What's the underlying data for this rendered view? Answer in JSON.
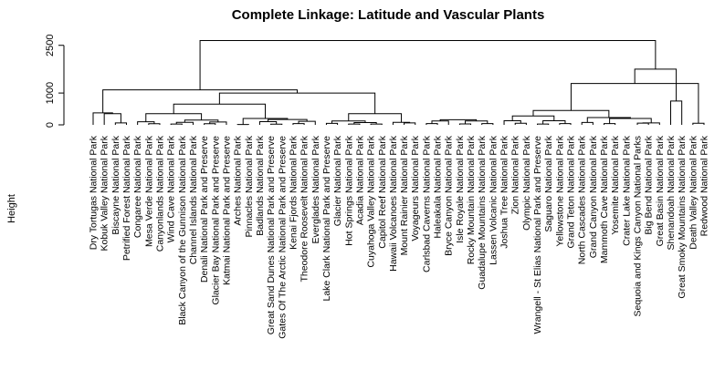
{
  "chart_data": {
    "type": "dendrogram",
    "title": "Complete Linkage: Latitude and Vascular Plants",
    "ylabel": "Height",
    "ylim": [
      0,
      2750
    ],
    "y_ticks": [
      0,
      1000,
      2500
    ],
    "y_tick_labels": [
      "0",
      "1000",
      "2500"
    ],
    "leaves": [
      "Dry Tortugas National Park",
      "Kobuk Valley National Park",
      "Biscayne National Park",
      "Petrified Forest National Park",
      "Congaree National Park",
      "Mesa Verde National Park",
      "Canyonlands National Park",
      "Wind Cave National Park",
      "Black Canyon of the Gunnison National Park",
      "Channel Islands National Park",
      "Denali National Park and Preserve",
      "Glacier Bay National Park and Preserve",
      "Katmai National Park and Preserve",
      "Arches National Park",
      "Pinnacles National Park",
      "Badlands National Park",
      "Great Sand Dunes National Park and Preserve",
      "Gates Of The Arctic National Park and Preserve",
      "Kenai Fjords National Park",
      "Theodore Roosevelt National Park",
      "Everglades National Park",
      "Lake Clark National Park and Preserve",
      "Glacier National Park",
      "Hot Springs National Park",
      "Acadia National Park",
      "Cuyahoga Valley National Park",
      "Capitol Reef National Park",
      "Hawaii Volcanoes National Park",
      "Mount Rainier National Park",
      "Voyageurs National Park",
      "Carlsbad Caverns National Park",
      "Haleakala National Park",
      "Bryce Canyon National Park",
      "Isle Royale National Park",
      "Rocky Mountain National Park",
      "Guadalupe Mountains National Park",
      "Lassen Volcanic National Park",
      "Joshua Tree National Park",
      "Zion National Park",
      "Olympic National Park",
      "Wrangell - St Elias National Park and Preserve",
      "Saguaro National Park",
      "Yellowstone National Park",
      "Grand Teton National Park",
      "North Cascades National Park",
      "Grand Canyon National Park",
      "Mammoth Cave National Park",
      "Yosemite National Park",
      "Crater Lake National Park",
      "Sequoia and Kings Canyon National Parks",
      "Big Bend National Park",
      "Great Basin National Park",
      "Shenandoah National Park",
      "Great Smoky Mountains National Park",
      "Death Valley National Park",
      "Redwood National Park"
    ],
    "merges": [
      {
        "left": [
          "leaf",
          13
        ],
        "right": [
          "leaf",
          14
        ],
        "height": 10
      },
      {
        "left": [
          "leaf",
          16
        ],
        "right": [
          "leaf",
          17
        ],
        "height": 20
      },
      {
        "left": [
          "leaf",
          7
        ],
        "right": [
          "leaf",
          8
        ],
        "height": 25
      },
      {
        "left": [
          "leaf",
          23
        ],
        "right": [
          "leaf",
          24
        ],
        "height": 25
      },
      {
        "left": [
          "leaf",
          25
        ],
        "right": [
          "leaf",
          26
        ],
        "height": 25
      },
      {
        "left": [
          "leaf",
          40
        ],
        "right": [
          "leaf",
          41
        ],
        "height": 25
      },
      {
        "left": [
          "leaf",
          33
        ],
        "right": [
          "leaf",
          34
        ],
        "height": 30
      },
      {
        "left": [
          "leaf",
          10
        ],
        "right": [
          "leaf",
          11
        ],
        "height": 35
      },
      {
        "left": [
          "leaf",
          5
        ],
        "right": [
          "leaf",
          6
        ],
        "height": 35
      },
      {
        "left": [
          "leaf",
          18
        ],
        "right": [
          "leaf",
          19
        ],
        "height": 40
      },
      {
        "left": [
          "leaf",
          30
        ],
        "right": [
          "leaf",
          31
        ],
        "height": 40
      },
      {
        "left": [
          "leaf",
          35
        ],
        "right": [
          "leaf",
          36
        ],
        "height": 40
      },
      {
        "left": [
          "leaf",
          42
        ],
        "right": [
          "leaf",
          43
        ],
        "height": 40
      },
      {
        "left": [
          "leaf",
          46
        ],
        "right": [
          "leaf",
          47
        ],
        "height": 40
      },
      {
        "left": [
          "leaf",
          21
        ],
        "right": [
          "leaf",
          22
        ],
        "height": 45
      },
      {
        "left": [
          "leaf",
          38
        ],
        "right": [
          "leaf",
          39
        ],
        "height": 50
      },
      {
        "left": [
          "leaf",
          54
        ],
        "right": [
          "leaf",
          55
        ],
        "height": 50
      },
      {
        "left": [
          "leaf",
          49
        ],
        "right": [
          "leaf",
          50
        ],
        "height": 55
      },
      {
        "left": [
          "leaf",
          2
        ],
        "right": [
          "leaf",
          3
        ],
        "height": 60
      },
      {
        "left": [
          "leaf",
          51
        ],
        "right": [
          "node",
          17
        ],
        "height": 60
      },
      {
        "left": [
          "leaf",
          28
        ],
        "right": [
          "leaf",
          29
        ],
        "height": 60
      },
      {
        "left": [
          "node",
          3
        ],
        "right": [
          "node",
          4
        ],
        "height": 70
      },
      {
        "left": [
          "leaf",
          44
        ],
        "right": [
          "leaf",
          45
        ],
        "height": 75
      },
      {
        "left": [
          "node",
          2
        ],
        "right": [
          "leaf",
          9
        ],
        "height": 80
      },
      {
        "left": [
          "leaf",
          27
        ],
        "right": [
          "node",
          20
        ],
        "height": 80
      },
      {
        "left": [
          "leaf",
          12
        ],
        "right": [
          "node",
          7
        ],
        "height": 90
      },
      {
        "left": [
          "leaf",
          4
        ],
        "right": [
          "node",
          8
        ],
        "height": 95
      },
      {
        "left": [
          "leaf",
          15
        ],
        "right": [
          "node",
          1
        ],
        "height": 100
      },
      {
        "left": [
          "node",
          9
        ],
        "right": [
          "leaf",
          20
        ],
        "height": 110
      },
      {
        "left": [
          "node",
          14
        ],
        "right": [
          "node",
          21
        ],
        "height": 120
      },
      {
        "left": [
          "node",
          10
        ],
        "right": [
          "leaf",
          32
        ],
        "height": 120
      },
      {
        "left": [
          "node",
          6
        ],
        "right": [
          "node",
          11
        ],
        "height": 120
      },
      {
        "left": [
          "leaf",
          37
        ],
        "right": [
          "node",
          15
        ],
        "height": 130
      },
      {
        "left": [
          "node",
          5
        ],
        "right": [
          "node",
          12
        ],
        "height": 130
      },
      {
        "left": [
          "node",
          23
        ],
        "right": [
          "node",
          25
        ],
        "height": 150
      },
      {
        "left": [
          "node",
          30
        ],
        "right": [
          "node",
          31
        ],
        "height": 160
      },
      {
        "left": [
          "node",
          27
        ],
        "right": [
          "node",
          28
        ],
        "height": 170
      },
      {
        "left": [
          "node",
          0
        ],
        "right": [
          "node",
          36
        ],
        "height": 200
      },
      {
        "left": [
          "node",
          13
        ],
        "right": [
          "node",
          19
        ],
        "height": 200
      },
      {
        "left": [
          "node",
          22
        ],
        "right": [
          "node",
          38
        ],
        "height": 230
      },
      {
        "left": [
          "node",
          32
        ],
        "right": [
          "node",
          33
        ],
        "height": 280
      },
      {
        "left": [
          "node",
          26
        ],
        "right": [
          "node",
          34
        ],
        "height": 350
      },
      {
        "left": [
          "leaf",
          1
        ],
        "right": [
          "node",
          18
        ],
        "height": 350
      },
      {
        "left": [
          "node",
          29
        ],
        "right": [
          "node",
          24
        ],
        "height": 350
      },
      {
        "left": [
          "node",
          40
        ],
        "right": [
          "node",
          39
        ],
        "height": 450
      },
      {
        "left": [
          "leaf",
          52
        ],
        "right": [
          "leaf",
          53
        ],
        "height": 750
      },
      {
        "left": [
          "leaf",
          0
        ],
        "right": [
          "node",
          42
        ],
        "height": 375
      },
      {
        "left": [
          "node",
          41
        ],
        "right": [
          "node",
          37
        ],
        "height": 650
      },
      {
        "left": [
          "node",
          47
        ],
        "right": [
          "node",
          43
        ],
        "height": 1000
      },
      {
        "left": [
          "node",
          44
        ],
        "right": [
          "node",
          16
        ],
        "height": 1300
      },
      {
        "left": [
          "node",
          46
        ],
        "right": [
          "node",
          48
        ],
        "height": 1100
      },
      {
        "left": [
          "node",
          49
        ],
        "right": [
          "node",
          45
        ],
        "height": 1750
      },
      {
        "left": [
          "node",
          50
        ],
        "right": [
          "node",
          51
        ],
        "height": 2650
      }
    ]
  }
}
